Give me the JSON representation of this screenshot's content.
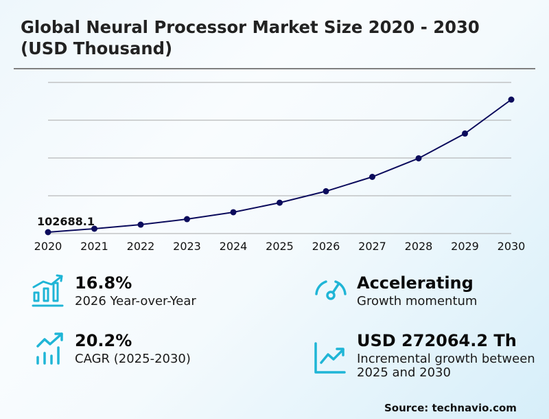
{
  "header": {
    "title": "Global Neural Processor Market Size 2020 - 2030 (USD Thousand)"
  },
  "chart_data": {
    "type": "line",
    "title": "Global Neural Processor Market Size 2020 - 2030 (USD Thousand)",
    "xlabel": "",
    "ylabel": "",
    "categories": [
      "2020",
      "2021",
      "2022",
      "2023",
      "2024",
      "2025",
      "2026",
      "2027",
      "2028",
      "2029",
      "2030"
    ],
    "series": [
      {
        "name": "Market Size (USD Thousand)",
        "color": "#0b0b5c",
        "values": [
          102688.1,
          111800,
          122600,
          137100,
          155300,
          180400,
          210700,
          248600,
          297600,
          362900,
          452500
        ]
      }
    ],
    "annotations": [
      {
        "x": "2020",
        "text": "102688.1"
      }
    ],
    "grid": true,
    "y_axis_labels_shown": false,
    "legend": "none"
  },
  "stats": [
    {
      "icon": "bar-chart-growth-icon",
      "value": "16.8%",
      "label": "2026 Year-over-Year"
    },
    {
      "icon": "speedometer-icon",
      "value": "Accelerating",
      "label": "Growth momentum"
    },
    {
      "icon": "trend-up-bars-icon",
      "value": "20.2%",
      "label": "CAGR (2025-2030)"
    },
    {
      "icon": "line-chart-up-icon",
      "value": "USD 272064.2 Th",
      "label": "Incremental growth between 2025 and 2030"
    }
  ],
  "colors": {
    "accent": "#1fb5d6",
    "line": "#0b0b5c",
    "grid": "#a8a8a8"
  },
  "footer": {
    "source": "Source: technavio.com"
  }
}
